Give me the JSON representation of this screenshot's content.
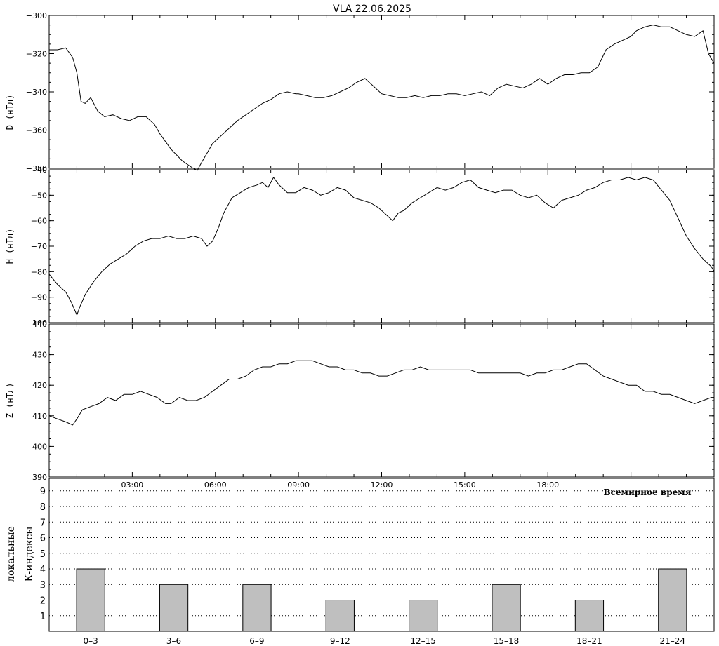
{
  "chart_data": [
    {
      "type": "line",
      "title": "VLA   22.06.2025",
      "ylabel": "D (нТл)",
      "ylim": [
        -380,
        -300
      ],
      "yticks": [
        "-300",
        "-320",
        "-340",
        "-360",
        "-380"
      ],
      "x_unit": "hours UT",
      "xlim": [
        0,
        24
      ],
      "series": [
        {
          "x": [
            0,
            0.3,
            0.6,
            0.85,
            1.0,
            1.15,
            1.3,
            1.5,
            1.75,
            2.0,
            2.3,
            2.6,
            2.9,
            3.2,
            3.5,
            3.8,
            4.0,
            4.2,
            4.4,
            4.6,
            4.8,
            5.0,
            5.2,
            5.35,
            5.5,
            5.7,
            5.9,
            6.2,
            6.5,
            6.8,
            7.1,
            7.4,
            7.7,
            8.0,
            8.3,
            8.6,
            8.9,
            9.0,
            9.3,
            9.6,
            9.9,
            10.2,
            10.5,
            10.8,
            11.1,
            11.4,
            11.7,
            12.0,
            12.3,
            12.6,
            12.9,
            13.2,
            13.5,
            13.8,
            14.1,
            14.4,
            14.7,
            15.0,
            15.3,
            15.6,
            15.9,
            16.2,
            16.5,
            16.8,
            17.1,
            17.4,
            17.7,
            18.0,
            18.3,
            18.6,
            18.9,
            19.2,
            19.5,
            19.8,
            20.1,
            20.4,
            20.7,
            21.0,
            21.2,
            21.5,
            21.8,
            22.1,
            22.4,
            22.7,
            23.0,
            23.3,
            23.6,
            23.8,
            24.0
          ],
          "y": [
            -318,
            -318,
            -317,
            -322,
            -330,
            -345,
            -346,
            -343,
            -350,
            -353,
            -352,
            -354,
            -355,
            -353,
            -353,
            -357,
            -362,
            -366,
            -370,
            -373,
            -376,
            -378,
            -380,
            -381,
            -377,
            -372,
            -367,
            -363,
            -359,
            -355,
            -352,
            -349,
            -346,
            -344,
            -341,
            -340,
            -341,
            -341,
            -342,
            -343,
            -343,
            -342,
            -340,
            -338,
            -335,
            -333,
            -337,
            -341,
            -342,
            -343,
            -343,
            -342,
            -343,
            -342,
            -342,
            -341,
            -341,
            -342,
            -341,
            -340,
            -342,
            -338,
            -336,
            -337,
            -338,
            -336,
            -333,
            -336,
            -333,
            -331,
            -331,
            -330,
            -330,
            -327,
            -318,
            -315,
            -313,
            -311,
            -308,
            -306,
            -305,
            -306,
            -306,
            -308,
            -310,
            -311,
            -308,
            -320,
            -325
          ]
        }
      ]
    },
    {
      "type": "line",
      "ylabel": "H (нТл)",
      "ylim": [
        -100,
        -40
      ],
      "yticks": [
        "-40",
        "-50",
        "-60",
        "-70",
        "-80",
        "-90",
        "-100"
      ],
      "xlim": [
        0,
        24
      ],
      "series": [
        {
          "x": [
            0,
            0.3,
            0.6,
            0.8,
            1.0,
            1.1,
            1.3,
            1.6,
            1.9,
            2.2,
            2.5,
            2.8,
            3.1,
            3.4,
            3.7,
            4.0,
            4.3,
            4.6,
            4.9,
            5.2,
            5.5,
            5.7,
            5.9,
            6.1,
            6.3,
            6.6,
            6.9,
            7.2,
            7.5,
            7.7,
            7.9,
            8.1,
            8.3,
            8.6,
            8.9,
            9.2,
            9.5,
            9.8,
            10.1,
            10.4,
            10.7,
            11.0,
            11.3,
            11.6,
            11.9,
            12.2,
            12.4,
            12.6,
            12.8,
            13.1,
            13.4,
            13.7,
            14.0,
            14.3,
            14.6,
            14.9,
            15.2,
            15.5,
            15.8,
            16.1,
            16.4,
            16.7,
            17.0,
            17.3,
            17.6,
            17.9,
            18.2,
            18.5,
            18.8,
            19.1,
            19.4,
            19.7,
            20.0,
            20.3,
            20.6,
            20.9,
            21.2,
            21.5,
            21.8,
            22.1,
            22.4,
            22.7,
            23.0,
            23.3,
            23.6,
            23.9,
            24.0
          ],
          "y": [
            -81,
            -85,
            -88,
            -92,
            -97,
            -94,
            -89,
            -84,
            -80,
            -77,
            -75,
            -73,
            -70,
            -68,
            -67,
            -67,
            -66,
            -67,
            -67,
            -66,
            -67,
            -70,
            -68,
            -63,
            -57,
            -51,
            -49,
            -47,
            -46,
            -45,
            -47,
            -43,
            -46,
            -49,
            -49,
            -47,
            -48,
            -50,
            -49,
            -47,
            -48,
            -51,
            -52,
            -53,
            -55,
            -58,
            -60,
            -57,
            -56,
            -53,
            -51,
            -49,
            -47,
            -48,
            -47,
            -45,
            -44,
            -47,
            -48,
            -49,
            -48,
            -48,
            -50,
            -51,
            -50,
            -53,
            -55,
            -52,
            -51,
            -50,
            -48,
            -47,
            -45,
            -44,
            -44,
            -43,
            -44,
            -43,
            -44,
            -48,
            -52,
            -59,
            -66,
            -71,
            -75,
            -78,
            -80
          ]
        }
      ]
    },
    {
      "type": "line",
      "ylabel": "Z (нТл)",
      "ylim": [
        390,
        440
      ],
      "yticks": [
        "440",
        "430",
        "420",
        "410",
        "400",
        "390"
      ],
      "xlim": [
        0,
        24
      ],
      "xticks": [
        "03:00",
        "06:00",
        "09:00",
        "12:00",
        "15:00",
        "18:00"
      ],
      "series": [
        {
          "x": [
            0,
            0.3,
            0.6,
            0.85,
            1.0,
            1.2,
            1.5,
            1.8,
            2.1,
            2.4,
            2.7,
            3.0,
            3.3,
            3.6,
            3.9,
            4.2,
            4.4,
            4.7,
            5.0,
            5.3,
            5.6,
            5.9,
            6.2,
            6.5,
            6.8,
            7.1,
            7.4,
            7.7,
            8.0,
            8.3,
            8.6,
            8.9,
            9.2,
            9.5,
            9.8,
            10.1,
            10.4,
            10.7,
            11.0,
            11.3,
            11.6,
            11.9,
            12.2,
            12.5,
            12.8,
            13.1,
            13.4,
            13.7,
            14.0,
            14.3,
            14.6,
            14.9,
            15.2,
            15.5,
            15.8,
            16.1,
            16.4,
            16.7,
            17.0,
            17.3,
            17.6,
            17.9,
            18.2,
            18.5,
            18.8,
            19.1,
            19.4,
            19.7,
            20.0,
            20.3,
            20.6,
            20.9,
            21.2,
            21.5,
            21.8,
            22.1,
            22.4,
            22.7,
            23.0,
            23.3,
            23.6,
            23.9,
            24.0
          ],
          "y": [
            410,
            409,
            408,
            407,
            409,
            412,
            413,
            414,
            416,
            415,
            417,
            417,
            418,
            417,
            416,
            414,
            414,
            416,
            415,
            415,
            416,
            418,
            420,
            422,
            422,
            423,
            425,
            426,
            426,
            427,
            427,
            428,
            428,
            428,
            427,
            426,
            426,
            425,
            425,
            424,
            424,
            423,
            423,
            424,
            425,
            425,
            426,
            425,
            425,
            425,
            425,
            425,
            425,
            424,
            424,
            424,
            424,
            424,
            424,
            423,
            424,
            424,
            425,
            425,
            426,
            427,
            427,
            425,
            423,
            422,
            421,
            420,
            420,
            418,
            418,
            417,
            417,
            416,
            415,
            414,
            415,
            416,
            416
          ]
        }
      ]
    },
    {
      "type": "bar",
      "ylabel": [
        "локальные",
        "К-индексы"
      ],
      "xlabel": "Всемирное время",
      "ylim": [
        0,
        9
      ],
      "yticks": [
        "1",
        "2",
        "3",
        "4",
        "5",
        "6",
        "7",
        "8",
        "9"
      ],
      "categories": [
        "0–3",
        "3–6",
        "6–9",
        "9–12",
        "12–15",
        "15–18",
        "18–21",
        "21–24"
      ],
      "values": [
        4,
        3,
        3,
        2,
        2,
        3,
        2,
        4
      ],
      "grid": true,
      "bar_color": "#bfbfbf"
    }
  ]
}
